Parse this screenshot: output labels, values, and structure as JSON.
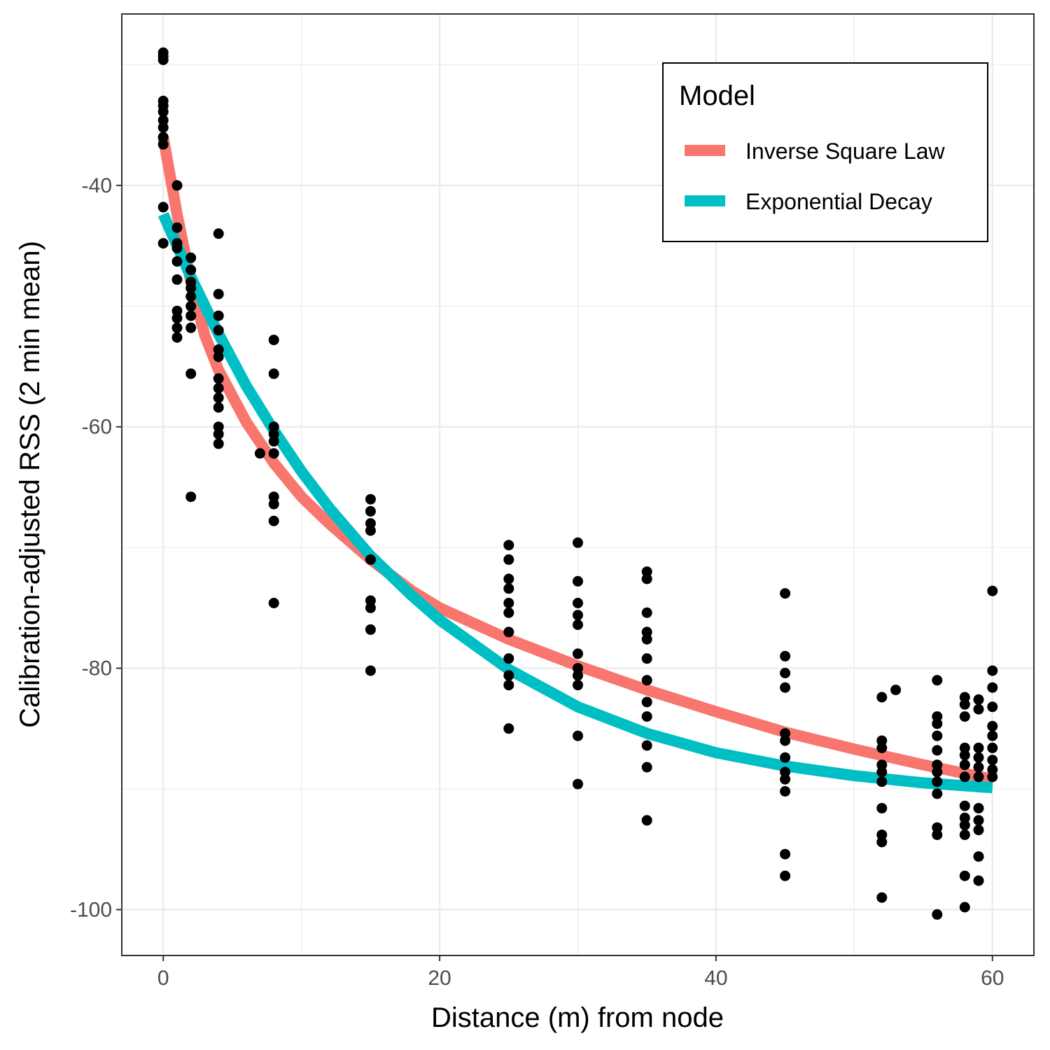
{
  "chart_data": {
    "type": "scatter",
    "title": "",
    "xlabel": "Distance (m) from node",
    "ylabel": "Calibration-adjusted RSS (2 min mean)",
    "xlim": [
      -3,
      63
    ],
    "ylim": [
      -103.8,
      -25.8
    ],
    "x_ticks": [
      0,
      20,
      40,
      60
    ],
    "y_ticks": [
      -100,
      -80,
      -60,
      -40
    ],
    "x_tick_labels": [
      "0",
      "20",
      "40",
      "60"
    ],
    "y_tick_labels": [
      "-100",
      "-80",
      "-60",
      "-40"
    ],
    "grid": true,
    "legend": {
      "title": "Model",
      "position": "top-right",
      "entries": [
        "Inverse Square Law",
        "Exponential Decay"
      ]
    },
    "colors": {
      "points": "#000000",
      "inverse_square": "#F8766D",
      "exponential": "#00BFC4",
      "grid": "#ebebeb",
      "panel_border": "#333333"
    },
    "points": [
      {
        "x": 0,
        "y": [
          -29.0,
          -29.3,
          -29.6,
          -33.0,
          -33.4,
          -33.9,
          -34.6,
          -35.2,
          -36.0,
          -36.6,
          -41.8,
          -44.8
        ]
      },
      {
        "x": 1,
        "y": [
          -40.0,
          -43.5,
          -44.8,
          -45.2,
          -46.3,
          -47.8,
          -50.4,
          -51.0,
          -51.8,
          -52.6
        ]
      },
      {
        "x": 2,
        "y": [
          -46.0,
          -47.0,
          -48.0,
          -48.5,
          -49.2,
          -50.0,
          -50.8,
          -51.8,
          -55.6,
          -65.8
        ]
      },
      {
        "x": 4,
        "y": [
          -44.0,
          -49.0,
          -50.8,
          -52.0,
          -53.6,
          -54.2,
          -56.0,
          -56.8,
          -57.6,
          -58.4,
          -60.0,
          -60.6,
          -61.4
        ]
      },
      {
        "x": 7,
        "y": [
          -62.2
        ]
      },
      {
        "x": 8,
        "y": [
          -52.8,
          -55.6,
          -60.0,
          -60.6,
          -61.2,
          -62.2,
          -65.8,
          -66.4,
          -67.8,
          -74.6
        ]
      },
      {
        "x": 15,
        "y": [
          -66.0,
          -67.0,
          -68.0,
          -68.6,
          -71.0,
          -74.4,
          -75.0,
          -76.8,
          -80.2
        ]
      },
      {
        "x": 25,
        "y": [
          -69.8,
          -71.0,
          -72.6,
          -73.4,
          -74.6,
          -75.4,
          -77.0,
          -79.2,
          -80.6,
          -81.4,
          -85.0
        ]
      },
      {
        "x": 30,
        "y": [
          -69.6,
          -72.8,
          -74.6,
          -75.6,
          -76.4,
          -78.8,
          -80.0,
          -80.6,
          -81.4,
          -85.6,
          -89.6
        ]
      },
      {
        "x": 35,
        "y": [
          -72.0,
          -72.6,
          -75.4,
          -77.0,
          -77.6,
          -79.2,
          -81.0,
          -82.8,
          -84.0,
          -86.4,
          -88.2,
          -92.6
        ]
      },
      {
        "x": 45,
        "y": [
          -73.8,
          -79.0,
          -80.4,
          -81.6,
          -85.4,
          -86.0,
          -87.4,
          -88.6,
          -89.2,
          -90.2,
          -95.4,
          -97.2
        ]
      },
      {
        "x": 52,
        "y": [
          -82.4,
          -86.0,
          -86.6,
          -88.0,
          -88.6,
          -89.4,
          -91.6,
          -93.8,
          -94.4,
          -99.0
        ]
      },
      {
        "x": 53,
        "y": [
          -81.8
        ]
      },
      {
        "x": 56,
        "y": [
          -81.0,
          -84.0,
          -84.6,
          -85.6,
          -86.8,
          -88.0,
          -88.6,
          -89.4,
          -90.4,
          -93.2,
          -93.8,
          -100.4
        ]
      },
      {
        "x": 58,
        "y": [
          -82.4,
          -83.0,
          -84.0,
          -86.6,
          -87.2,
          -88.0,
          -89.0,
          -91.4,
          -92.4,
          -93.0,
          -93.8,
          -97.2,
          -99.8
        ]
      },
      {
        "x": 59,
        "y": [
          -82.6,
          -83.4,
          -86.6,
          -87.4,
          -88.2,
          -89.0,
          -91.6,
          -92.6,
          -93.4,
          -95.6,
          -97.6
        ]
      },
      {
        "x": 60,
        "y": [
          -73.6,
          -80.2,
          -81.6,
          -83.2,
          -84.8,
          -85.6,
          -86.6,
          -87.6,
          -88.4,
          -89.0
        ]
      }
    ],
    "series": [
      {
        "name": "Inverse Square Law",
        "x": [
          0,
          0.5,
          1,
          2,
          3,
          4,
          6,
          8,
          10,
          12,
          15,
          18,
          20,
          25,
          30,
          35,
          40,
          45,
          50,
          55,
          60
        ],
        "y": [
          -36.0,
          -39.2,
          -42.4,
          -48.0,
          -52.4,
          -55.3,
          -59.6,
          -63.0,
          -65.8,
          -68.0,
          -71.0,
          -73.6,
          -75.0,
          -77.6,
          -79.8,
          -81.8,
          -83.6,
          -85.3,
          -86.7,
          -88.0,
          -89.2
        ]
      },
      {
        "name": "Exponential Decay",
        "x": [
          0,
          1,
          2,
          4,
          6,
          8,
          10,
          12,
          15,
          18,
          20,
          25,
          30,
          35,
          40,
          45,
          50,
          55,
          60
        ],
        "y": [
          -42.4,
          -45.0,
          -47.6,
          -52.3,
          -56.6,
          -60.3,
          -63.7,
          -66.7,
          -70.7,
          -74.0,
          -76.0,
          -80.1,
          -83.2,
          -85.4,
          -87.0,
          -88.1,
          -88.9,
          -89.5,
          -89.9
        ]
      }
    ]
  }
}
